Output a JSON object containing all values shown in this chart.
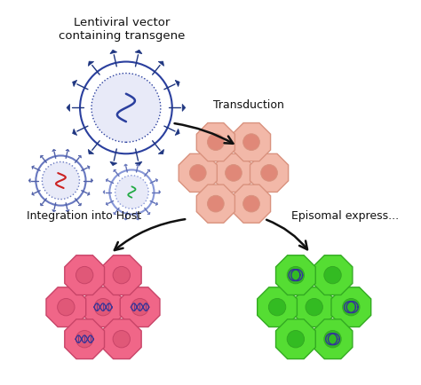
{
  "bg_color": "#ffffff",
  "virus_outer_color": "#2a3f9e",
  "virus_fill_color": "#ffffff",
  "virus_inner_fill": "#e8eaf8",
  "virus_dot_color": "#2a3f9e",
  "virus_spike_color": "#1e3580",
  "rna_blue": "#2a3f9e",
  "rna_red": "#cc2222",
  "rna_green": "#22aa44",
  "cell_salmon_face": "#f2b8a8",
  "cell_salmon_edge": "#d9927e",
  "cell_salmon_nuc": "#e08878",
  "cell_pink_face": "#f06688",
  "cell_pink_edge": "#c84468",
  "cell_pink_nuc": "#e05878",
  "cell_green_face": "#55dd33",
  "cell_green_edge": "#33aa22",
  "cell_green_nuc": "#33bb22",
  "arrow_color": "#111111",
  "text_color": "#111111",
  "label_virus": "Lentiviral vector\ncontaining transgene",
  "label_transduction": "Transduction",
  "label_integration": "Integration into Host",
  "label_episomal": "Episomal express..."
}
